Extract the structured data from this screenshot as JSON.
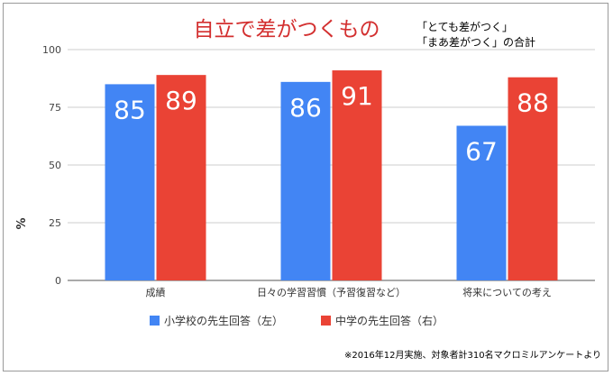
{
  "chart_data": {
    "type": "bar",
    "title": "自立で差がつくもの",
    "note_lines": [
      "「とても差がつく」",
      "「まあ差がつく」の合計"
    ],
    "ylabel": "%",
    "ylim": [
      0,
      100
    ],
    "yticks": [
      0,
      25,
      50,
      75,
      100
    ],
    "grid": true,
    "categories": [
      "成績",
      "日々の学習習慣（予習復習など）",
      "将来についての考え"
    ],
    "series": [
      {
        "name": "小学校の先生回答（左）",
        "color": "#4285f4",
        "values": [
          85,
          86,
          67
        ]
      },
      {
        "name": "中学の先生回答（右）",
        "color": "#ea4335",
        "values": [
          89,
          91,
          88
        ]
      }
    ],
    "legend_position": "bottom",
    "footnote": "※2016年12月実施、対象者計310名マクロミルアンケートより"
  }
}
